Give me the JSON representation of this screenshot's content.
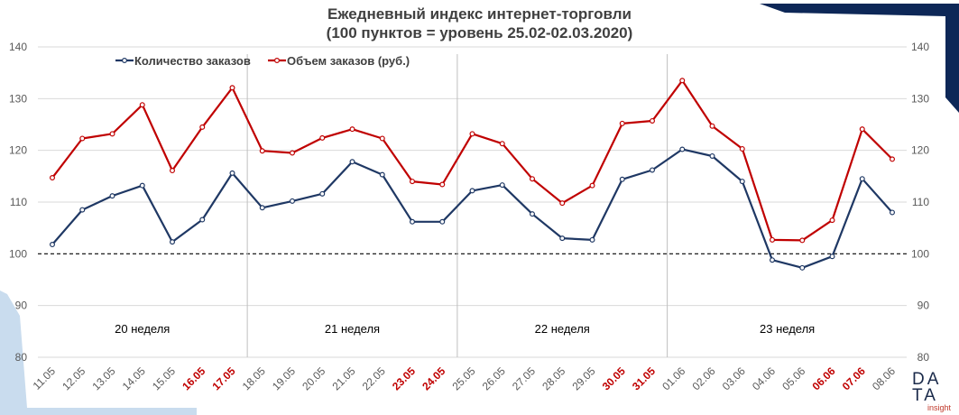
{
  "chart_data": {
    "type": "line",
    "title": "Ежедневный индекс интернет-торговли",
    "subtitle": "(100 пунктов = уровень 25.02-02.03.2020)",
    "categories": [
      "11.05",
      "12.05",
      "13.05",
      "14.05",
      "15.05",
      "16.05",
      "17.05",
      "18.05",
      "19.05",
      "20.05",
      "21.05",
      "22.05",
      "23.05",
      "24.05",
      "25.05",
      "26.05",
      "27.05",
      "28.05",
      "29.05",
      "30.05",
      "31.05",
      "01.06",
      "02.06",
      "03.06",
      "04.06",
      "05.06",
      "06.06",
      "07.06",
      "08.06"
    ],
    "highlighted_categories": [
      "16.05",
      "17.05",
      "23.05",
      "24.05",
      "30.05",
      "31.05",
      "06.06",
      "07.06"
    ],
    "series": [
      {
        "name": "Количество заказов",
        "color": "#1f3864",
        "values": [
          101.8,
          108.5,
          111.2,
          113.2,
          102.3,
          106.6,
          115.6,
          108.9,
          110.2,
          111.6,
          117.8,
          115.3,
          106.2,
          106.2,
          112.2,
          113.3,
          107.7,
          103.0,
          102.7,
          114.4,
          116.2,
          120.2,
          118.9,
          114.0,
          98.8,
          97.3,
          99.5,
          114.5,
          108.0
        ]
      },
      {
        "name": "Объем заказов (руб.)",
        "color": "#c00000",
        "values": [
          114.7,
          122.3,
          123.2,
          128.8,
          116.1,
          124.5,
          132.1,
          119.9,
          119.5,
          122.4,
          124.1,
          122.3,
          114.0,
          113.4,
          123.2,
          121.3,
          114.5,
          109.8,
          113.2,
          125.2,
          125.7,
          133.5,
          124.7,
          120.3,
          102.7,
          102.6,
          106.5,
          124.1,
          118.3
        ]
      }
    ],
    "yticks": [
      80,
      90,
      100,
      110,
      120,
      130,
      140
    ],
    "ylim": [
      80,
      140
    ],
    "reference_line": 100,
    "week_labels": [
      {
        "label": "20 неделя",
        "start": 0,
        "end": 6
      },
      {
        "label": "21 неделя",
        "start": 7,
        "end": 13
      },
      {
        "label": "22 неделя",
        "start": 14,
        "end": 20
      },
      {
        "label": "23 неделя",
        "start": 21,
        "end": 28
      }
    ],
    "legend_position": "top-left",
    "grid": true
  },
  "branding": {
    "logo_line1": "DA",
    "logo_line2": "TA",
    "logo_line3": "insight"
  },
  "colors": {
    "axis_text": "#595959",
    "weekend_label": "#c00000",
    "grid": "#d9d9d9",
    "accent_navy": "#0d2757",
    "accent_light": "#c9dcee"
  }
}
